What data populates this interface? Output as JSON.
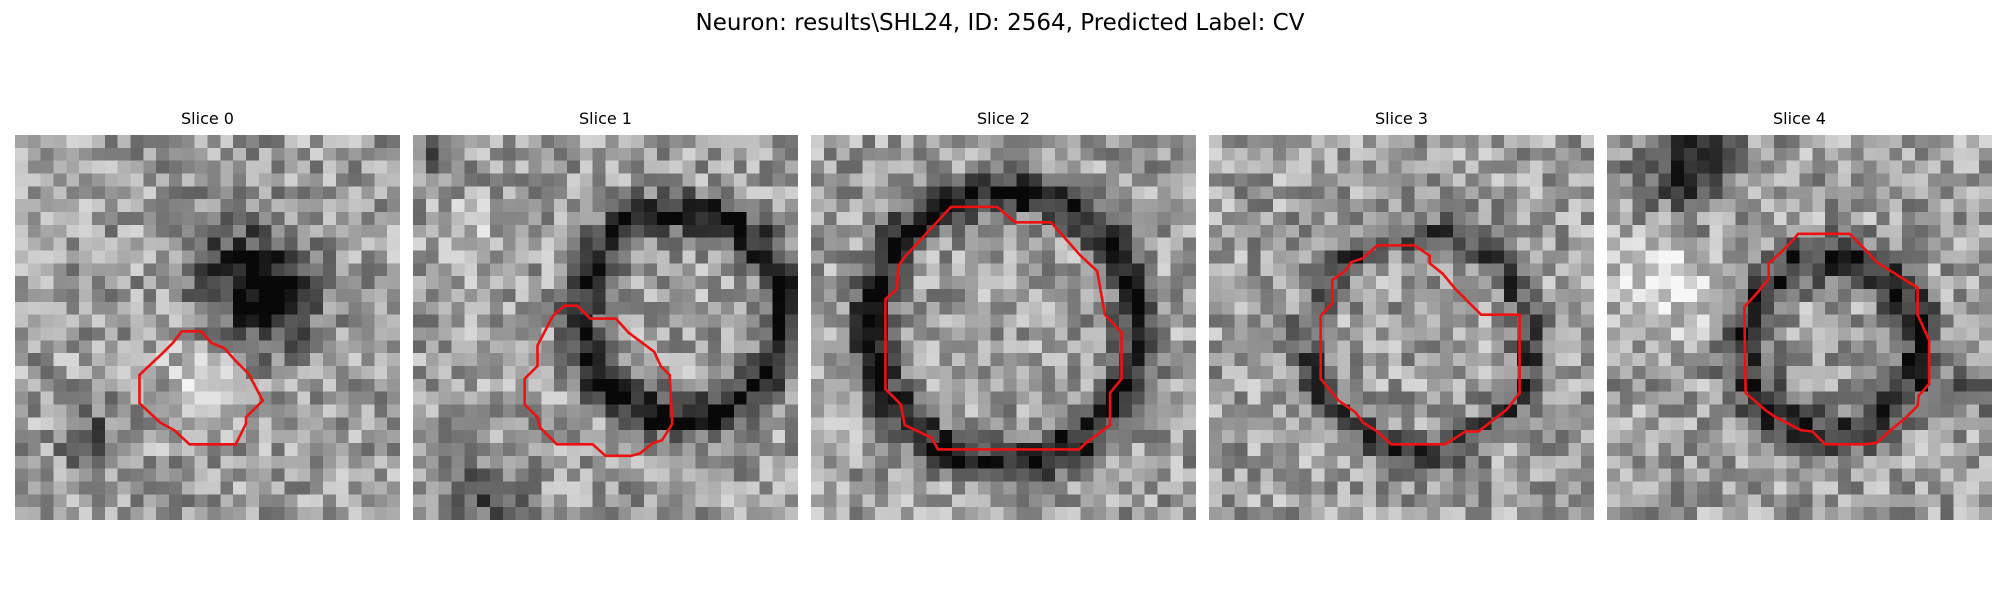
{
  "title": "Neuron: results\\SHL24, ID: 2564, Predicted Label: CV",
  "image": {
    "grid_size": 30,
    "colormap": "gray"
  },
  "slices": [
    {
      "label": "Slice 0",
      "contour_color": "#ee1111",
      "contour": [
        [
          13.5,
          15.3
        ],
        [
          14.5,
          15.3
        ],
        [
          15.3,
          16.2
        ],
        [
          16.3,
          16.6
        ],
        [
          17.1,
          17.5
        ],
        [
          18.2,
          18.6
        ],
        [
          19.3,
          20.7
        ],
        [
          18.0,
          22.0
        ],
        [
          18.0,
          22.5
        ],
        [
          17.2,
          24.1
        ],
        [
          13.6,
          24.1
        ],
        [
          12.4,
          23.0
        ],
        [
          11.3,
          22.4
        ],
        [
          9.7,
          20.9
        ],
        [
          9.7,
          18.7
        ],
        [
          11.6,
          16.9
        ],
        [
          12.3,
          16.2
        ],
        [
          13.0,
          15.3
        ]
      ],
      "dark_blobs": [
        {
          "x": 20,
          "y": 13,
          "r": 3.5,
          "d": 0.55
        },
        {
          "x": 17,
          "y": 10,
          "r": 4,
          "d": 0.35
        },
        {
          "x": 6,
          "y": 24,
          "r": 2.2,
          "d": 0.35
        }
      ],
      "light_blobs": [
        {
          "x": 14,
          "y": 20,
          "r": 3,
          "d": 0.15
        }
      ]
    },
    {
      "label": "Slice 1",
      "contour_color": "#ee1111",
      "contour": [
        [
          11.8,
          13.3
        ],
        [
          12.8,
          13.3
        ],
        [
          13.8,
          14.3
        ],
        [
          15.8,
          14.3
        ],
        [
          16.8,
          15.4
        ],
        [
          18.8,
          16.9
        ],
        [
          19.3,
          18.0
        ],
        [
          20.0,
          18.7
        ],
        [
          20.2,
          22.5
        ],
        [
          19.4,
          23.8
        ],
        [
          18.7,
          24.0
        ],
        [
          17.7,
          24.8
        ],
        [
          17.0,
          25.0
        ],
        [
          16.9,
          25.0
        ],
        [
          15.0,
          25.0
        ],
        [
          14.0,
          24.1
        ],
        [
          11.2,
          24.1
        ],
        [
          9.9,
          22.8
        ],
        [
          9.7,
          22.0
        ],
        [
          8.7,
          21.0
        ],
        [
          8.7,
          19.0
        ],
        [
          9.7,
          18.0
        ],
        [
          9.7,
          16.4
        ],
        [
          10.9,
          14.1
        ],
        [
          11.8,
          13.3
        ]
      ],
      "ring": {
        "x": 21,
        "y": 14,
        "r": 8,
        "w": 1.6,
        "d": 0.55
      },
      "dark_blobs": [
        {
          "x": 6,
          "y": 28,
          "r": 2.5,
          "d": 0.3
        },
        {
          "x": 2,
          "y": 2,
          "r": 2,
          "d": 0.25
        }
      ],
      "light_blobs": [
        {
          "x": 5,
          "y": 8,
          "r": 3,
          "d": 0.1
        }
      ]
    },
    {
      "label": "Slice 2",
      "contour_color": "#ee1111",
      "contour": [
        [
          10.9,
          5.6
        ],
        [
          14.5,
          5.6
        ],
        [
          15.9,
          6.8
        ],
        [
          18.7,
          6.8
        ],
        [
          21.0,
          9.4
        ],
        [
          22.3,
          10.6
        ],
        [
          22.9,
          14.0
        ],
        [
          24.2,
          15.4
        ],
        [
          24.2,
          19.0
        ],
        [
          23.3,
          20.1
        ],
        [
          23.3,
          22.6
        ],
        [
          21.3,
          24.1
        ],
        [
          20.9,
          24.5
        ],
        [
          19.8,
          24.5
        ],
        [
          9.9,
          24.5
        ],
        [
          9.4,
          23.6
        ],
        [
          7.3,
          22.6
        ],
        [
          7.0,
          21.0
        ],
        [
          5.8,
          19.8
        ],
        [
          5.8,
          12.8
        ],
        [
          6.7,
          12.0
        ],
        [
          6.8,
          10.2
        ],
        [
          7.4,
          9.4
        ],
        [
          8.5,
          8.2
        ],
        [
          9.8,
          6.8
        ],
        [
          10.9,
          5.6
        ]
      ],
      "ring": {
        "x": 15,
        "y": 15,
        "r": 10.5,
        "w": 1.6,
        "d": 0.55
      },
      "dark_blobs": [],
      "light_blobs": []
    },
    {
      "label": "Slice 3",
      "contour_color": "#ee1111",
      "contour": [
        [
          13.1,
          8.6
        ],
        [
          16.0,
          8.6
        ],
        [
          17.2,
          9.4
        ],
        [
          17.2,
          10.0
        ],
        [
          18.2,
          10.8
        ],
        [
          19.2,
          12.0
        ],
        [
          21.2,
          14.0
        ],
        [
          24.2,
          14.0
        ],
        [
          24.2,
          20.1
        ],
        [
          23.2,
          21.4
        ],
        [
          21.0,
          23.1
        ],
        [
          20.0,
          23.1
        ],
        [
          18.4,
          24.1
        ],
        [
          14.2,
          24.1
        ],
        [
          13.1,
          23.1
        ],
        [
          12.0,
          22.4
        ],
        [
          11.4,
          21.6
        ],
        [
          10.1,
          20.7
        ],
        [
          8.7,
          19.0
        ],
        [
          8.7,
          14.1
        ],
        [
          9.6,
          13.1
        ],
        [
          9.6,
          11.3
        ],
        [
          10.6,
          10.6
        ],
        [
          11.1,
          9.9
        ],
        [
          12.0,
          9.6
        ],
        [
          13.1,
          8.6
        ]
      ],
      "ring": {
        "x": 16.5,
        "y": 16.2,
        "r": 8.5,
        "w": 1.4,
        "d": 0.35
      },
      "dark_blobs": [],
      "light_blobs": []
    },
    {
      "label": "Slice 4",
      "contour_color": "#ee1111",
      "contour": [
        [
          14.9,
          7.7
        ],
        [
          18.9,
          7.7
        ],
        [
          20.2,
          9.0
        ],
        [
          21.0,
          9.9
        ],
        [
          24.2,
          11.9
        ],
        [
          24.2,
          14.0
        ],
        [
          25.1,
          16.0
        ],
        [
          25.1,
          19.4
        ],
        [
          24.3,
          20.3
        ],
        [
          24.2,
          21.1
        ],
        [
          23.2,
          22.1
        ],
        [
          22.1,
          23.0
        ],
        [
          21.0,
          24.0
        ],
        [
          20.0,
          24.1
        ],
        [
          19.3,
          24.1
        ],
        [
          17.0,
          24.1
        ],
        [
          16.0,
          23.1
        ],
        [
          15.1,
          23.0
        ],
        [
          13.0,
          21.9
        ],
        [
          12.3,
          21.4
        ],
        [
          10.8,
          20.1
        ],
        [
          10.7,
          13.4
        ],
        [
          11.7,
          12.3
        ],
        [
          12.6,
          11.2
        ],
        [
          12.6,
          10.0
        ],
        [
          13.5,
          9.2
        ],
        [
          14.3,
          8.4
        ],
        [
          14.9,
          7.7
        ]
      ],
      "ring": {
        "x": 17.5,
        "y": 16.5,
        "r": 6.8,
        "w": 1.8,
        "d": 0.45
      },
      "dark_blobs": [
        {
          "x": 6,
          "y": 2,
          "r": 3.5,
          "d": 0.5
        },
        {
          "x": 28,
          "y": 20,
          "r": 2,
          "d": 0.2
        }
      ],
      "light_blobs": [
        {
          "x": 4,
          "y": 12,
          "r": 4,
          "d": 0.25
        }
      ]
    }
  ]
}
